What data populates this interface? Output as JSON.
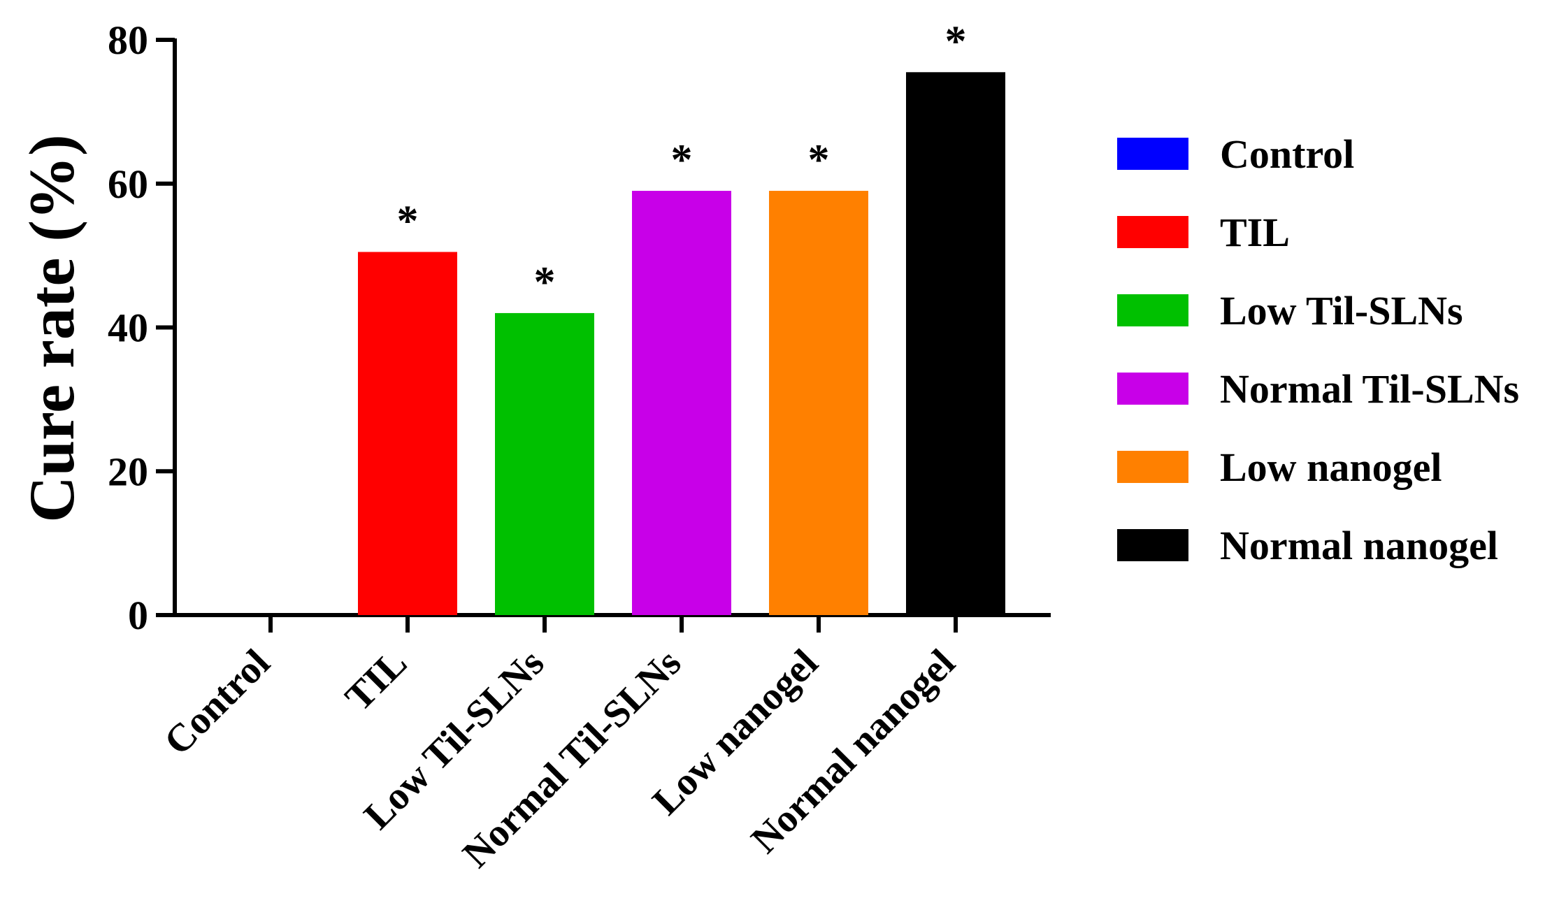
{
  "chart_data": {
    "type": "bar",
    "title": "",
    "xlabel": "",
    "ylabel": "Cure rate (%)",
    "ylim": [
      0,
      80
    ],
    "yticks": [
      0,
      20,
      40,
      60,
      80
    ],
    "categories": [
      "Control",
      "TIL",
      "Low Til-SLNs",
      "Normal Til-SLNs",
      "Low nanogel",
      "Normal nanogel"
    ],
    "values": [
      0,
      50.5,
      42,
      59,
      59,
      75.5
    ],
    "colors": [
      "#0000ff",
      "#ff0000",
      "#00c000",
      "#c800e8",
      "#ff8000",
      "#000000"
    ],
    "significance": [
      "",
      "*",
      "*",
      "*",
      "*",
      "*"
    ],
    "legend": {
      "position": "right",
      "entries": [
        "Control",
        "TIL",
        "Low Til-SLNs",
        "Normal Til-SLNs",
        "Low nanogel",
        "Normal nanogel"
      ]
    },
    "grid": false
  }
}
